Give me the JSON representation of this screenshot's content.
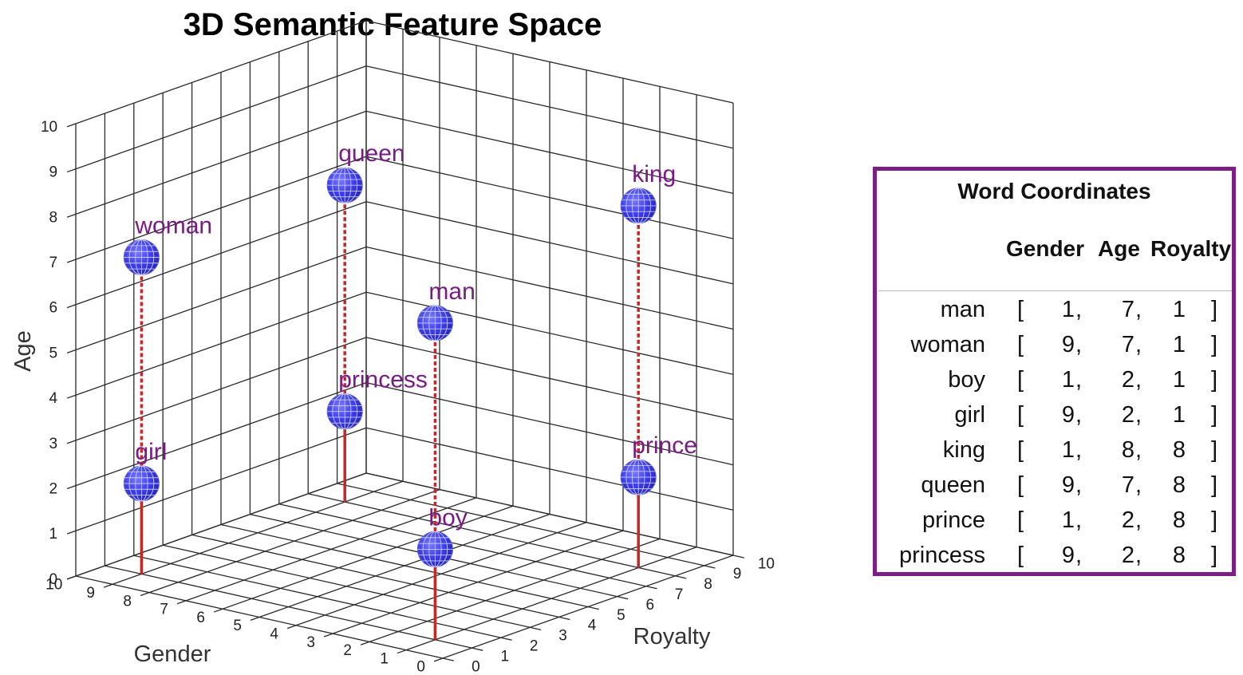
{
  "chart_data": {
    "type": "scatter",
    "title": "3D Semantic Feature Space",
    "xlabel": "Gender",
    "ylabel": "Royalty",
    "zlabel": "Age",
    "xlim": [
      0,
      10
    ],
    "ylim": [
      0,
      10
    ],
    "zlim": [
      0,
      10
    ],
    "xticks": [
      "0",
      "1",
      "2",
      "3",
      "4",
      "5",
      "6",
      "7",
      "8",
      "9",
      "10"
    ],
    "yticks": [
      "0",
      "1",
      "2",
      "3",
      "4",
      "5",
      "6",
      "7",
      "8",
      "9",
      "10"
    ],
    "zticks": [
      "0",
      "1",
      "2",
      "3",
      "4",
      "5",
      "6",
      "7",
      "8",
      "9",
      "10"
    ],
    "grid": true,
    "marker_color": "#3d3def",
    "stem_color": "#c62828",
    "label_color": "#7a1a84",
    "points": [
      {
        "word": "man",
        "gender": 1,
        "age": 7,
        "royalty": 1
      },
      {
        "word": "woman",
        "gender": 9,
        "age": 7,
        "royalty": 1
      },
      {
        "word": "boy",
        "gender": 1,
        "age": 2,
        "royalty": 1
      },
      {
        "word": "girl",
        "gender": 9,
        "age": 2,
        "royalty": 1
      },
      {
        "word": "king",
        "gender": 1,
        "age": 8,
        "royalty": 8
      },
      {
        "word": "queen",
        "gender": 9,
        "age": 7,
        "royalty": 8
      },
      {
        "word": "prince",
        "gender": 1,
        "age": 2,
        "royalty": 8
      },
      {
        "word": "princess",
        "gender": 9,
        "age": 2,
        "royalty": 8
      }
    ]
  },
  "table": {
    "title": "Word Coordinates",
    "headers": [
      "Gender",
      "Age",
      "Royalty"
    ],
    "border_color": "#7b1f86",
    "open_bracket": "[",
    "close_bracket": "]",
    "comma": ",",
    "rows": [
      {
        "word": "man",
        "gender": "1",
        "age": "7",
        "royalty": "1"
      },
      {
        "word": "woman",
        "gender": "9",
        "age": "7",
        "royalty": "1"
      },
      {
        "word": "boy",
        "gender": "1",
        "age": "2",
        "royalty": "1"
      },
      {
        "word": "girl",
        "gender": "9",
        "age": "2",
        "royalty": "1"
      },
      {
        "word": "king",
        "gender": "1",
        "age": "8",
        "royalty": "8"
      },
      {
        "word": "queen",
        "gender": "9",
        "age": "7",
        "royalty": "8"
      },
      {
        "word": "prince",
        "gender": "1",
        "age": "2",
        "royalty": "8"
      },
      {
        "word": "princess",
        "gender": "9",
        "age": "2",
        "royalty": "8"
      }
    ]
  }
}
